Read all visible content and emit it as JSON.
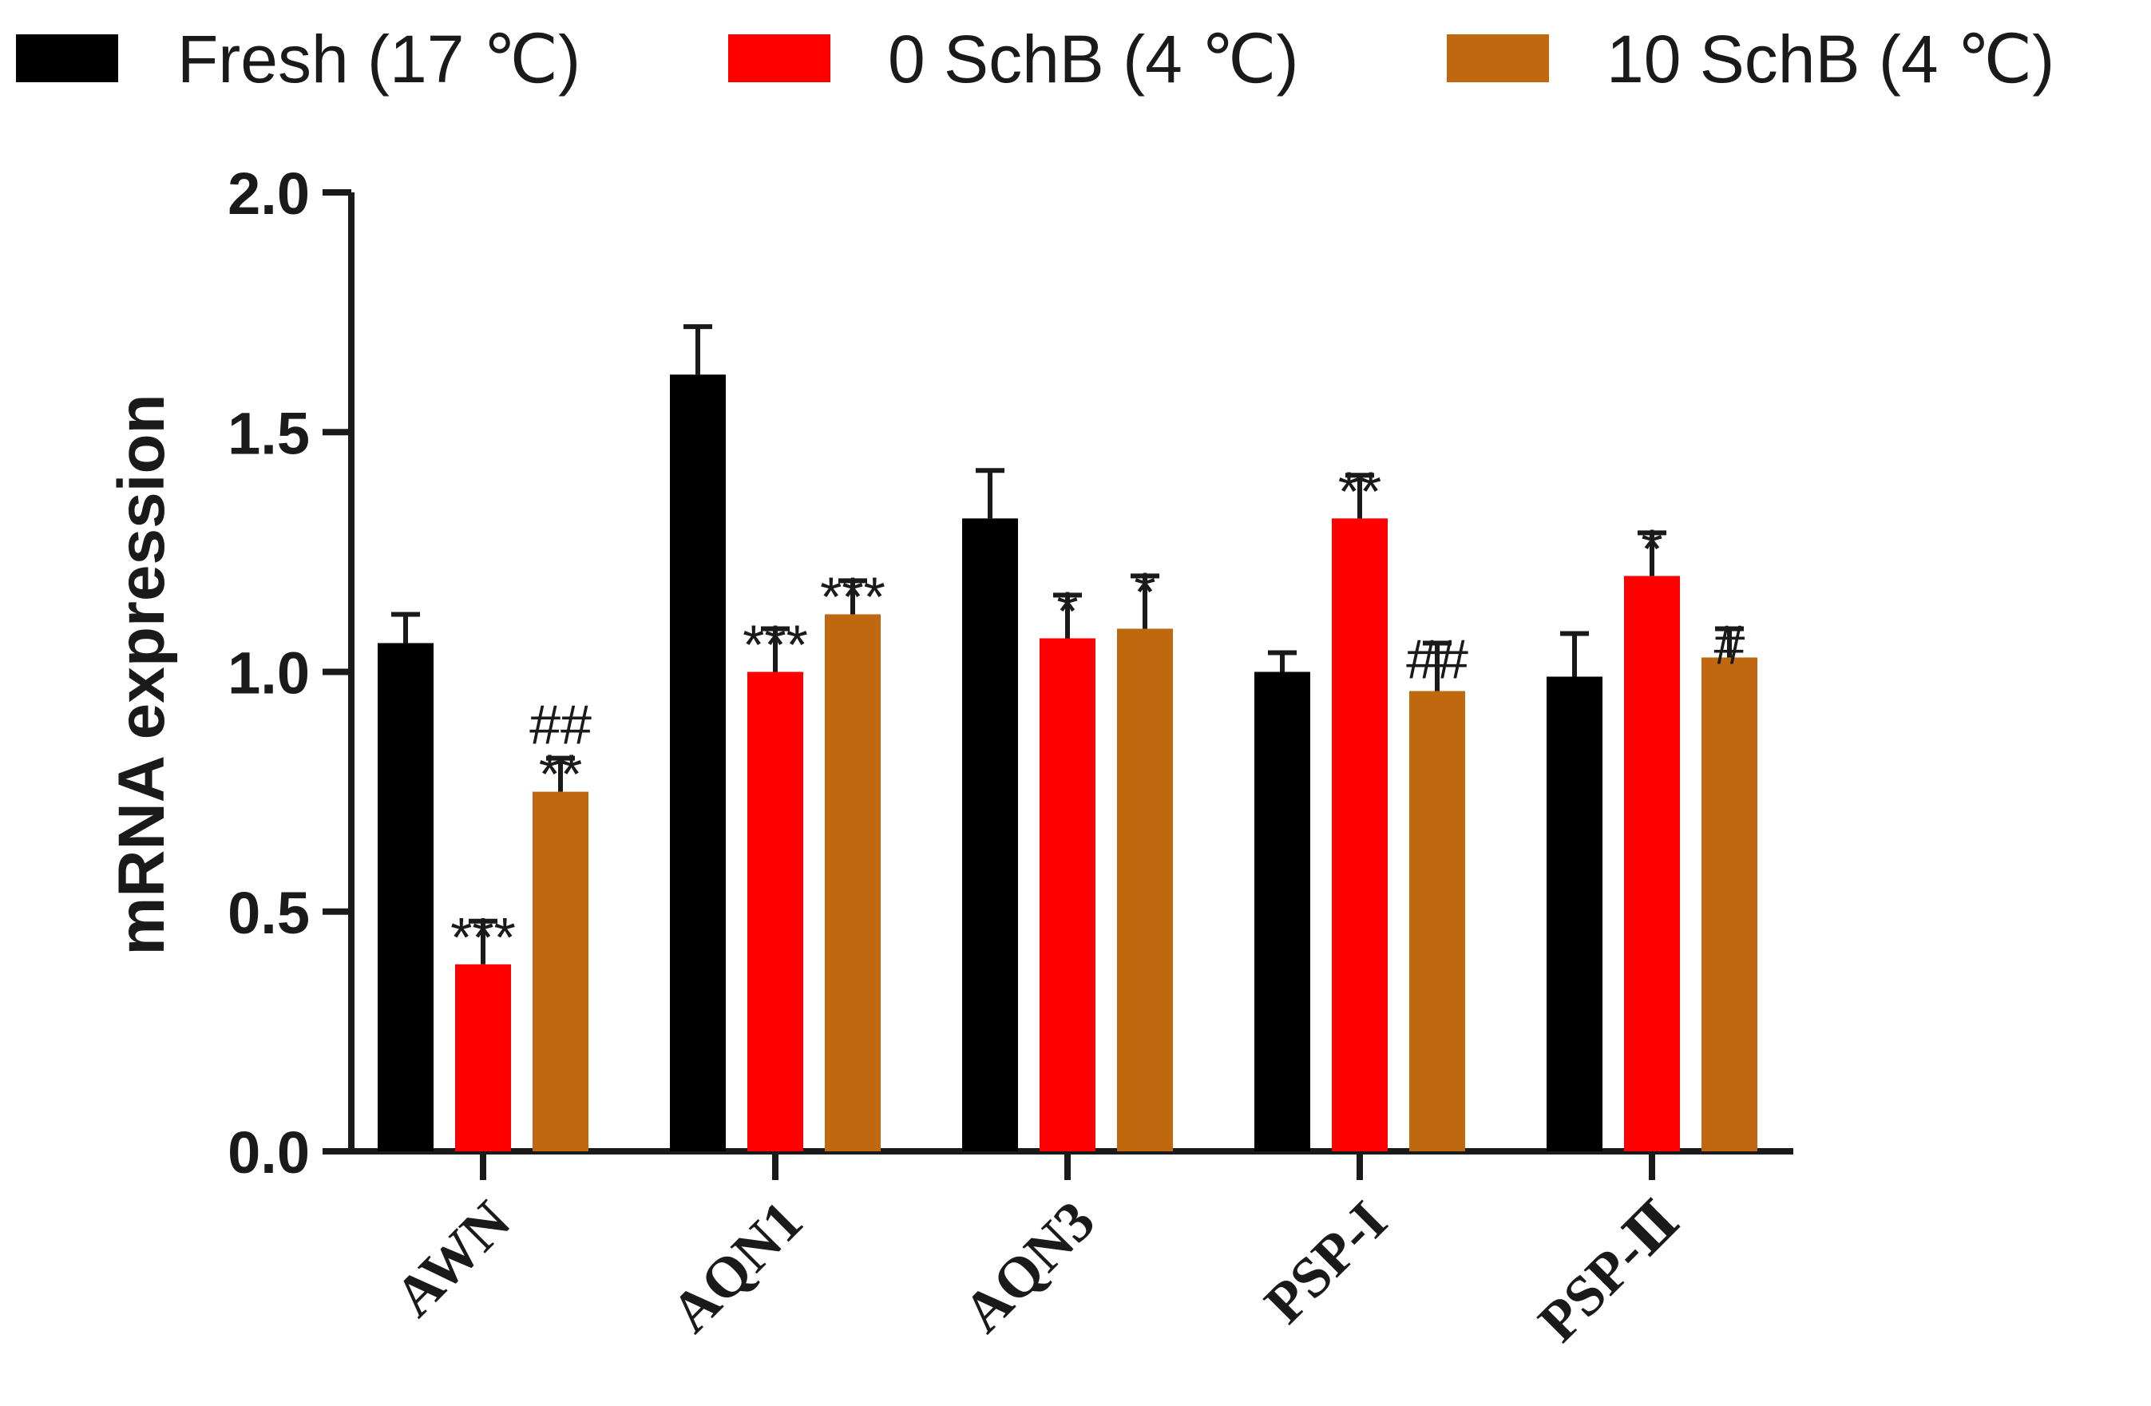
{
  "chart_data": {
    "type": "bar",
    "title": "",
    "xlabel": "",
    "ylabel": "mRNA expression",
    "ylim": [
      0,
      2.0
    ],
    "yticks": [
      "0.0",
      "0.5",
      "1.0",
      "1.5",
      "2.0"
    ],
    "ytick_values": [
      0,
      0.5,
      1.0,
      1.5,
      2.0
    ],
    "grid": false,
    "legend_position": "top",
    "categories": [
      "AWN",
      "AQN1",
      "AQN3",
      "PSP-I",
      "PSP-Ⅱ"
    ],
    "series": [
      {
        "name": "Fresh (17 ℃)",
        "color": "#000000",
        "values": [
          1.06,
          1.62,
          1.32,
          1.0,
          0.99
        ],
        "errors": [
          0.06,
          0.1,
          0.1,
          0.04,
          0.09
        ],
        "annotations": [
          "",
          "",
          "",
          "",
          ""
        ]
      },
      {
        "name": "0 SchB (4 ℃)",
        "color": "#ff0000",
        "values": [
          0.39,
          1.0,
          1.07,
          1.32,
          1.2
        ],
        "errors": [
          0.09,
          0.09,
          0.09,
          0.09,
          0.09
        ],
        "annotations": [
          "***",
          "***",
          "*",
          "**",
          "*"
        ]
      },
      {
        "name": "10 SchB (4 ℃)",
        "color": "#c0680f",
        "values": [
          0.75,
          1.12,
          1.09,
          0.96,
          1.03
        ],
        "errors": [
          0.07,
          0.07,
          0.11,
          0.1,
          0.06
        ],
        "annotations": [
          "##\n**",
          "***",
          "*",
          "##",
          "#"
        ]
      }
    ]
  }
}
